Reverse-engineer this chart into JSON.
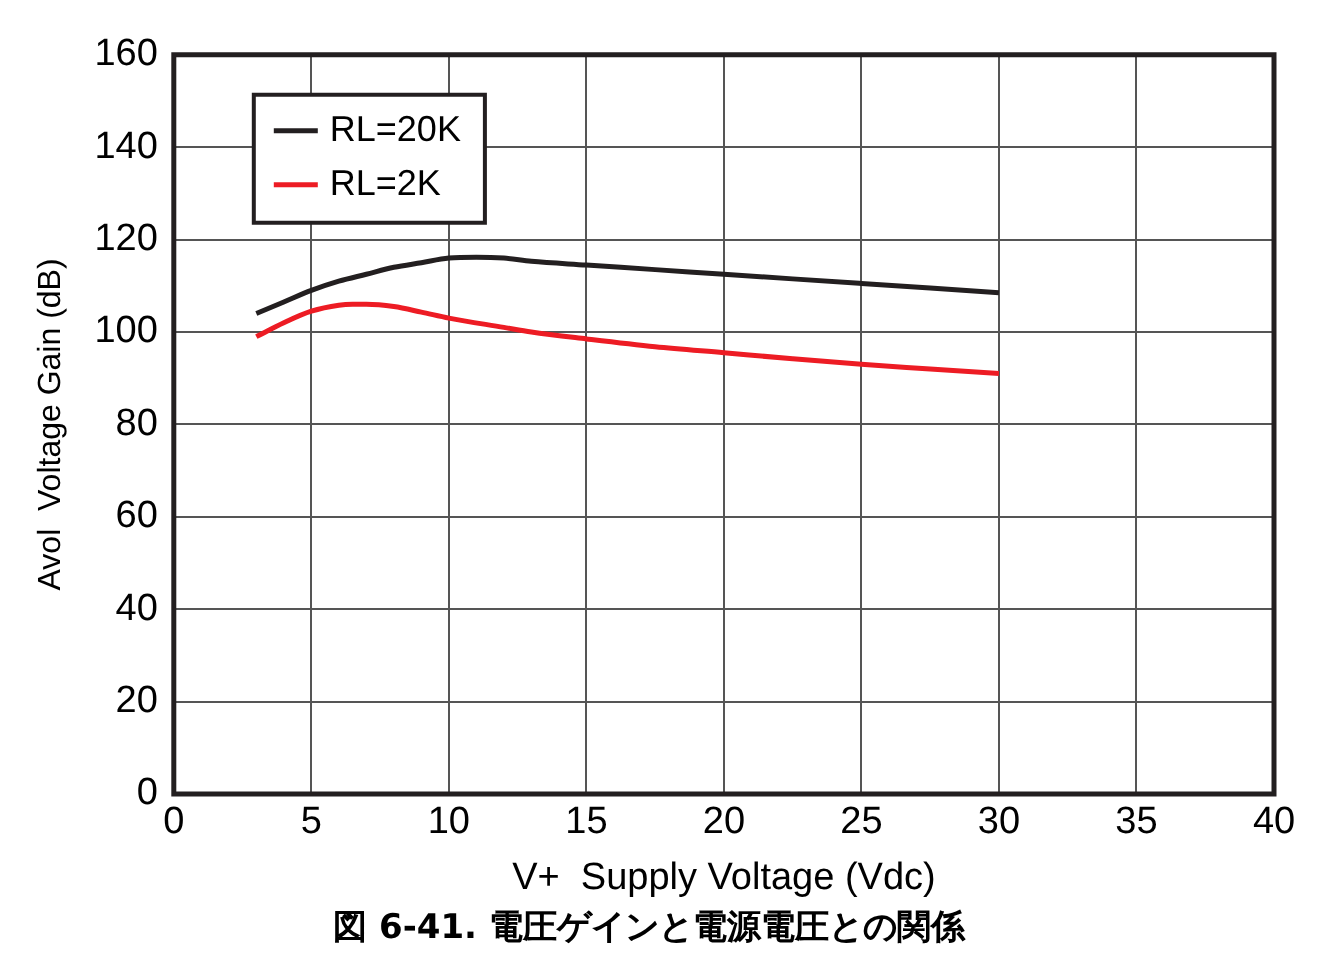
{
  "chart_data": {
    "type": "line",
    "title": "図 6-41. 電圧ゲインと電源電圧との関係",
    "xlabel": "V+  Supply Voltage (Vdc)",
    "ylabel": "Avol  Voltage Gain (dB)",
    "xlim": [
      0,
      40
    ],
    "xticks": [
      0,
      5,
      10,
      15,
      20,
      25,
      30,
      35,
      40
    ],
    "ylim": [
      0,
      160
    ],
    "yticks": [
      0,
      20,
      40,
      60,
      80,
      100,
      120,
      140,
      160
    ],
    "grid": true,
    "legend": "top left",
    "marker": "none",
    "line_style": "solid",
    "series": [
      {
        "name": "RL=20K",
        "color": "#231f20",
        "x": [
          3,
          4,
          5,
          6,
          7,
          8,
          9,
          10,
          11,
          12,
          13,
          15,
          17.5,
          20,
          22.5,
          25,
          27.5,
          30
        ],
        "values": [
          104,
          106.5,
          109,
          111,
          112.5,
          114,
          115,
          116,
          116.2,
          116,
          115.3,
          114.5,
          113.5,
          112.5,
          111.5,
          110.5,
          109.5,
          108.5
        ]
      },
      {
        "name": "RL=2K",
        "color": "#ed1c24",
        "x": [
          3,
          4,
          5,
          6,
          6.5,
          7,
          8,
          9,
          10,
          12,
          13,
          15,
          17.5,
          20,
          22.5,
          25,
          27.5,
          30
        ],
        "values": [
          99,
          102,
          104.5,
          105.8,
          106,
          106,
          105.5,
          104.3,
          103,
          101,
          100,
          98.5,
          96.8,
          95.5,
          94.2,
          93,
          92,
          91
        ]
      }
    ]
  }
}
